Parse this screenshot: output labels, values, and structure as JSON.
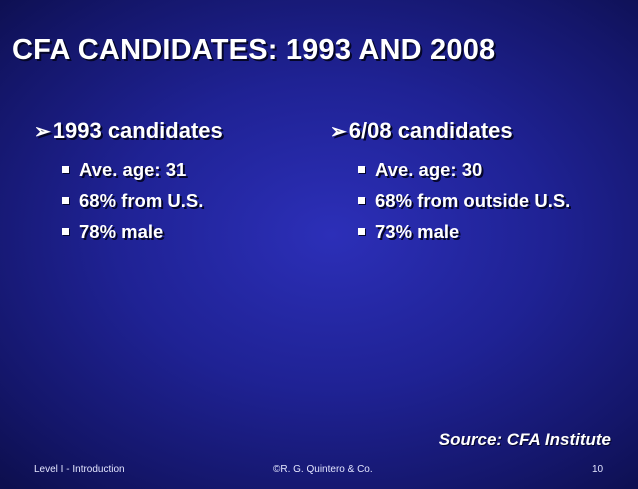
{
  "slide": {
    "title": "CFA CANDIDATES:  1993 AND 2008",
    "left": {
      "heading": "1993 candidates",
      "items": [
        "Ave. age:  31",
        "68% from U.S.",
        "78% male"
      ]
    },
    "right": {
      "heading": "6/08 candidates",
      "items": [
        "Ave. age:  30",
        "68% from outside U.S.",
        "73% male"
      ]
    },
    "source": "Source:  CFA Institute"
  },
  "footer": {
    "left": "Level I - Introduction",
    "center": "©R. G. Quintero & Co.",
    "page": "10"
  },
  "icons": {
    "heading_bullet": "arrow-bullet-icon",
    "item_bullet": "square-bullet-icon"
  },
  "colors": {
    "background": "#1f2294",
    "text": "#ffffff"
  }
}
